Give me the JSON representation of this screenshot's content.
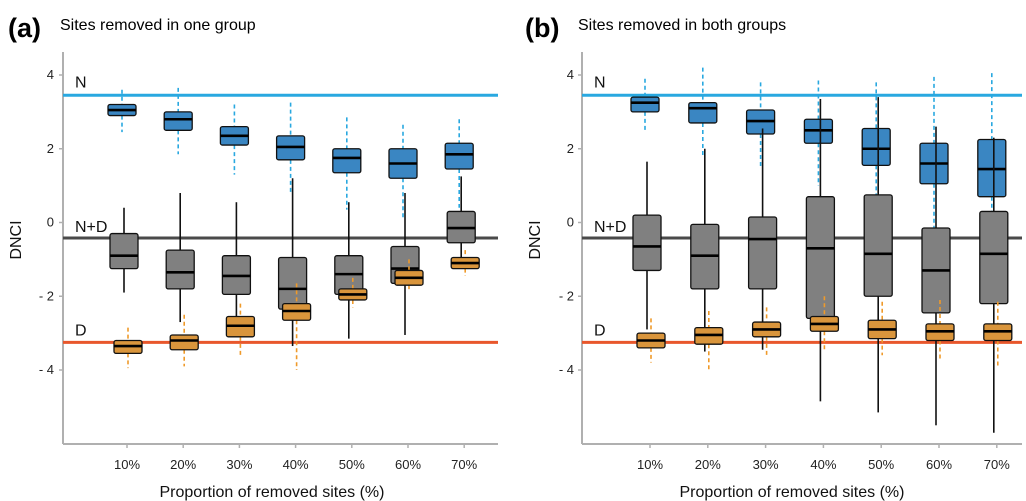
{
  "chart_data": [
    {
      "type": "boxplot",
      "panel_label": "(a)",
      "title": "Sites removed in one group",
      "xlabel": "Proportion of removed sites (%)",
      "ylabel": "DNCI",
      "categories": [
        "10%",
        "20%",
        "30%",
        "40%",
        "50%",
        "60%",
        "70%"
      ],
      "yticks": [
        4,
        2,
        0,
        -2,
        -4
      ],
      "ytick_labels": [
        "4",
        "2",
        "0",
        "- 2",
        "- 4"
      ],
      "ylim": [
        -6.3,
        4.6
      ],
      "reference_lines": [
        {
          "name": "N",
          "y": 3.45,
          "color": "#29a8e0"
        },
        {
          "name": "N+D",
          "y": -0.42,
          "color": "#4a4a4a"
        },
        {
          "name": "D",
          "y": -3.25,
          "color": "#e8572c"
        }
      ],
      "series": [
        {
          "name": "N",
          "fill": "#3a86c2",
          "whisker_color": "#29a8e0",
          "whisker_style": "dashed",
          "boxes": [
            {
              "low": 2.45,
              "q1": 2.9,
              "median": 3.05,
              "q3": 3.2,
              "high": 3.6
            },
            {
              "low": 1.85,
              "q1": 2.5,
              "median": 2.8,
              "q3": 3.0,
              "high": 3.65
            },
            {
              "low": 1.3,
              "q1": 2.1,
              "median": 2.35,
              "q3": 2.6,
              "high": 3.2
            },
            {
              "low": 0.8,
              "q1": 1.7,
              "median": 2.05,
              "q3": 2.35,
              "high": 3.25
            },
            {
              "low": 0.35,
              "q1": 1.35,
              "median": 1.75,
              "q3": 2.0,
              "high": 2.85
            },
            {
              "low": 0.1,
              "q1": 1.2,
              "median": 1.6,
              "q3": 2.0,
              "high": 2.65
            },
            {
              "low": 0.4,
              "q1": 1.45,
              "median": 1.85,
              "q3": 2.15,
              "high": 2.8
            }
          ]
        },
        {
          "name": "N+D",
          "fill": "#808080",
          "whisker_color": "#111111",
          "whisker_style": "solid",
          "boxes": [
            {
              "low": -1.9,
              "q1": -1.25,
              "median": -0.9,
              "q3": -0.3,
              "high": 0.4
            },
            {
              "low": -2.7,
              "q1": -1.8,
              "median": -1.35,
              "q3": -0.75,
              "high": 0.8
            },
            {
              "low": -3.1,
              "q1": -1.95,
              "median": -1.45,
              "q3": -0.9,
              "high": 0.55
            },
            {
              "low": -3.35,
              "q1": -2.35,
              "median": -1.8,
              "q3": -0.95,
              "high": 1.2
            },
            {
              "low": -3.15,
              "q1": -1.95,
              "median": -1.4,
              "q3": -0.9,
              "high": 0.55
            },
            {
              "low": -3.05,
              "q1": -1.65,
              "median": -1.25,
              "q3": -0.65,
              "high": 0.8
            },
            {
              "low": -1.0,
              "q1": -0.55,
              "median": -0.15,
              "q3": 0.3,
              "high": 1.25
            }
          ]
        },
        {
          "name": "D",
          "fill": "#d9953c",
          "whisker_color": "#ef9a2a",
          "whisker_style": "dashed",
          "boxes": [
            {
              "low": -3.95,
              "q1": -3.55,
              "median": -3.35,
              "q3": -3.2,
              "high": -2.85
            },
            {
              "low": -3.9,
              "q1": -3.45,
              "median": -3.2,
              "q3": -3.05,
              "high": -2.5
            },
            {
              "low": -3.65,
              "q1": -3.1,
              "median": -2.8,
              "q3": -2.55,
              "high": -2.2
            },
            {
              "low": -4.0,
              "q1": -2.65,
              "median": -2.4,
              "q3": -2.2,
              "high": -1.65
            },
            {
              "low": -2.3,
              "q1": -2.1,
              "median": -1.95,
              "q3": -1.8,
              "high": -1.5
            },
            {
              "low": -1.85,
              "q1": -1.7,
              "median": -1.5,
              "q3": -1.3,
              "high": -1.0
            },
            {
              "low": -1.45,
              "q1": -1.25,
              "median": -1.1,
              "q3": -0.95,
              "high": -0.75
            }
          ]
        }
      ]
    },
    {
      "type": "boxplot",
      "panel_label": "(b)",
      "title": "Sites removed in both groups",
      "xlabel": "Proportion of removed sites (%)",
      "ylabel": "DNCI",
      "categories": [
        "10%",
        "20%",
        "30%",
        "40%",
        "50%",
        "60%",
        "70%"
      ],
      "yticks": [
        4,
        2,
        0,
        -2,
        -4
      ],
      "ytick_labels": [
        "4",
        "2",
        "0",
        "- 2",
        "- 4"
      ],
      "ylim": [
        -6.3,
        4.6
      ],
      "reference_lines": [
        {
          "name": "N",
          "y": 3.45,
          "color": "#29a8e0"
        },
        {
          "name": "N+D",
          "y": -0.42,
          "color": "#4a4a4a"
        },
        {
          "name": "D",
          "y": -3.25,
          "color": "#e8572c"
        }
      ],
      "series": [
        {
          "name": "N",
          "fill": "#3a86c2",
          "whisker_color": "#29a8e0",
          "whisker_style": "dashed",
          "boxes": [
            {
              "low": 2.45,
              "q1": 3.0,
              "median": 3.25,
              "q3": 3.4,
              "high": 3.9
            },
            {
              "low": 1.75,
              "q1": 2.7,
              "median": 3.1,
              "q3": 3.25,
              "high": 4.2
            },
            {
              "low": 1.5,
              "q1": 2.4,
              "median": 2.75,
              "q3": 3.05,
              "high": 3.8
            },
            {
              "low": 1.0,
              "q1": 2.15,
              "median": 2.5,
              "q3": 2.8,
              "high": 3.85
            },
            {
              "low": 0.2,
              "q1": 1.55,
              "median": 2.0,
              "q3": 2.55,
              "high": 3.8
            },
            {
              "low": -0.4,
              "q1": 1.05,
              "median": 1.6,
              "q3": 2.15,
              "high": 3.95
            },
            {
              "low": -0.45,
              "q1": 0.7,
              "median": 1.45,
              "q3": 2.25,
              "high": 4.05
            }
          ]
        },
        {
          "name": "N+D",
          "fill": "#808080",
          "whisker_color": "#111111",
          "whisker_style": "solid",
          "boxes": [
            {
              "low": -2.9,
              "q1": -1.3,
              "median": -0.65,
              "q3": 0.2,
              "high": 1.65
            },
            {
              "low": -3.5,
              "q1": -1.8,
              "median": -0.9,
              "q3": -0.05,
              "high": 2.0
            },
            {
              "low": -3.45,
              "q1": -1.8,
              "median": -0.45,
              "q3": 0.15,
              "high": 2.55
            },
            {
              "low": -4.85,
              "q1": -2.6,
              "median": -0.7,
              "q3": 0.7,
              "high": 3.35
            },
            {
              "low": -5.15,
              "q1": -2.0,
              "median": -0.85,
              "q3": 0.75,
              "high": 3.4
            },
            {
              "low": -5.5,
              "q1": -2.45,
              "median": -1.3,
              "q3": -0.15,
              "high": 2.6
            },
            {
              "low": -5.7,
              "q1": -2.2,
              "median": -0.85,
              "q3": 0.3,
              "high": 2.3
            }
          ]
        },
        {
          "name": "D",
          "fill": "#d9953c",
          "whisker_color": "#ef9a2a",
          "whisker_style": "dashed",
          "boxes": [
            {
              "low": -3.8,
              "q1": -3.4,
              "median": -3.2,
              "q3": -3.0,
              "high": -2.6
            },
            {
              "low": -4.0,
              "q1": -3.3,
              "median": -3.05,
              "q3": -2.85,
              "high": -2.4
            },
            {
              "low": -3.6,
              "q1": -3.1,
              "median": -2.9,
              "q3": -2.7,
              "high": -2.3
            },
            {
              "low": -3.5,
              "q1": -2.95,
              "median": -2.75,
              "q3": -2.55,
              "high": -2.0
            },
            {
              "low": -3.6,
              "q1": -3.15,
              "median": -2.9,
              "q3": -2.65,
              "high": -2.15
            },
            {
              "low": -3.75,
              "q1": -3.2,
              "median": -2.95,
              "q3": -2.75,
              "high": -2.1
            },
            {
              "low": -3.95,
              "q1": -3.2,
              "median": -2.95,
              "q3": -2.75,
              "high": -2.15
            }
          ]
        }
      ]
    }
  ]
}
